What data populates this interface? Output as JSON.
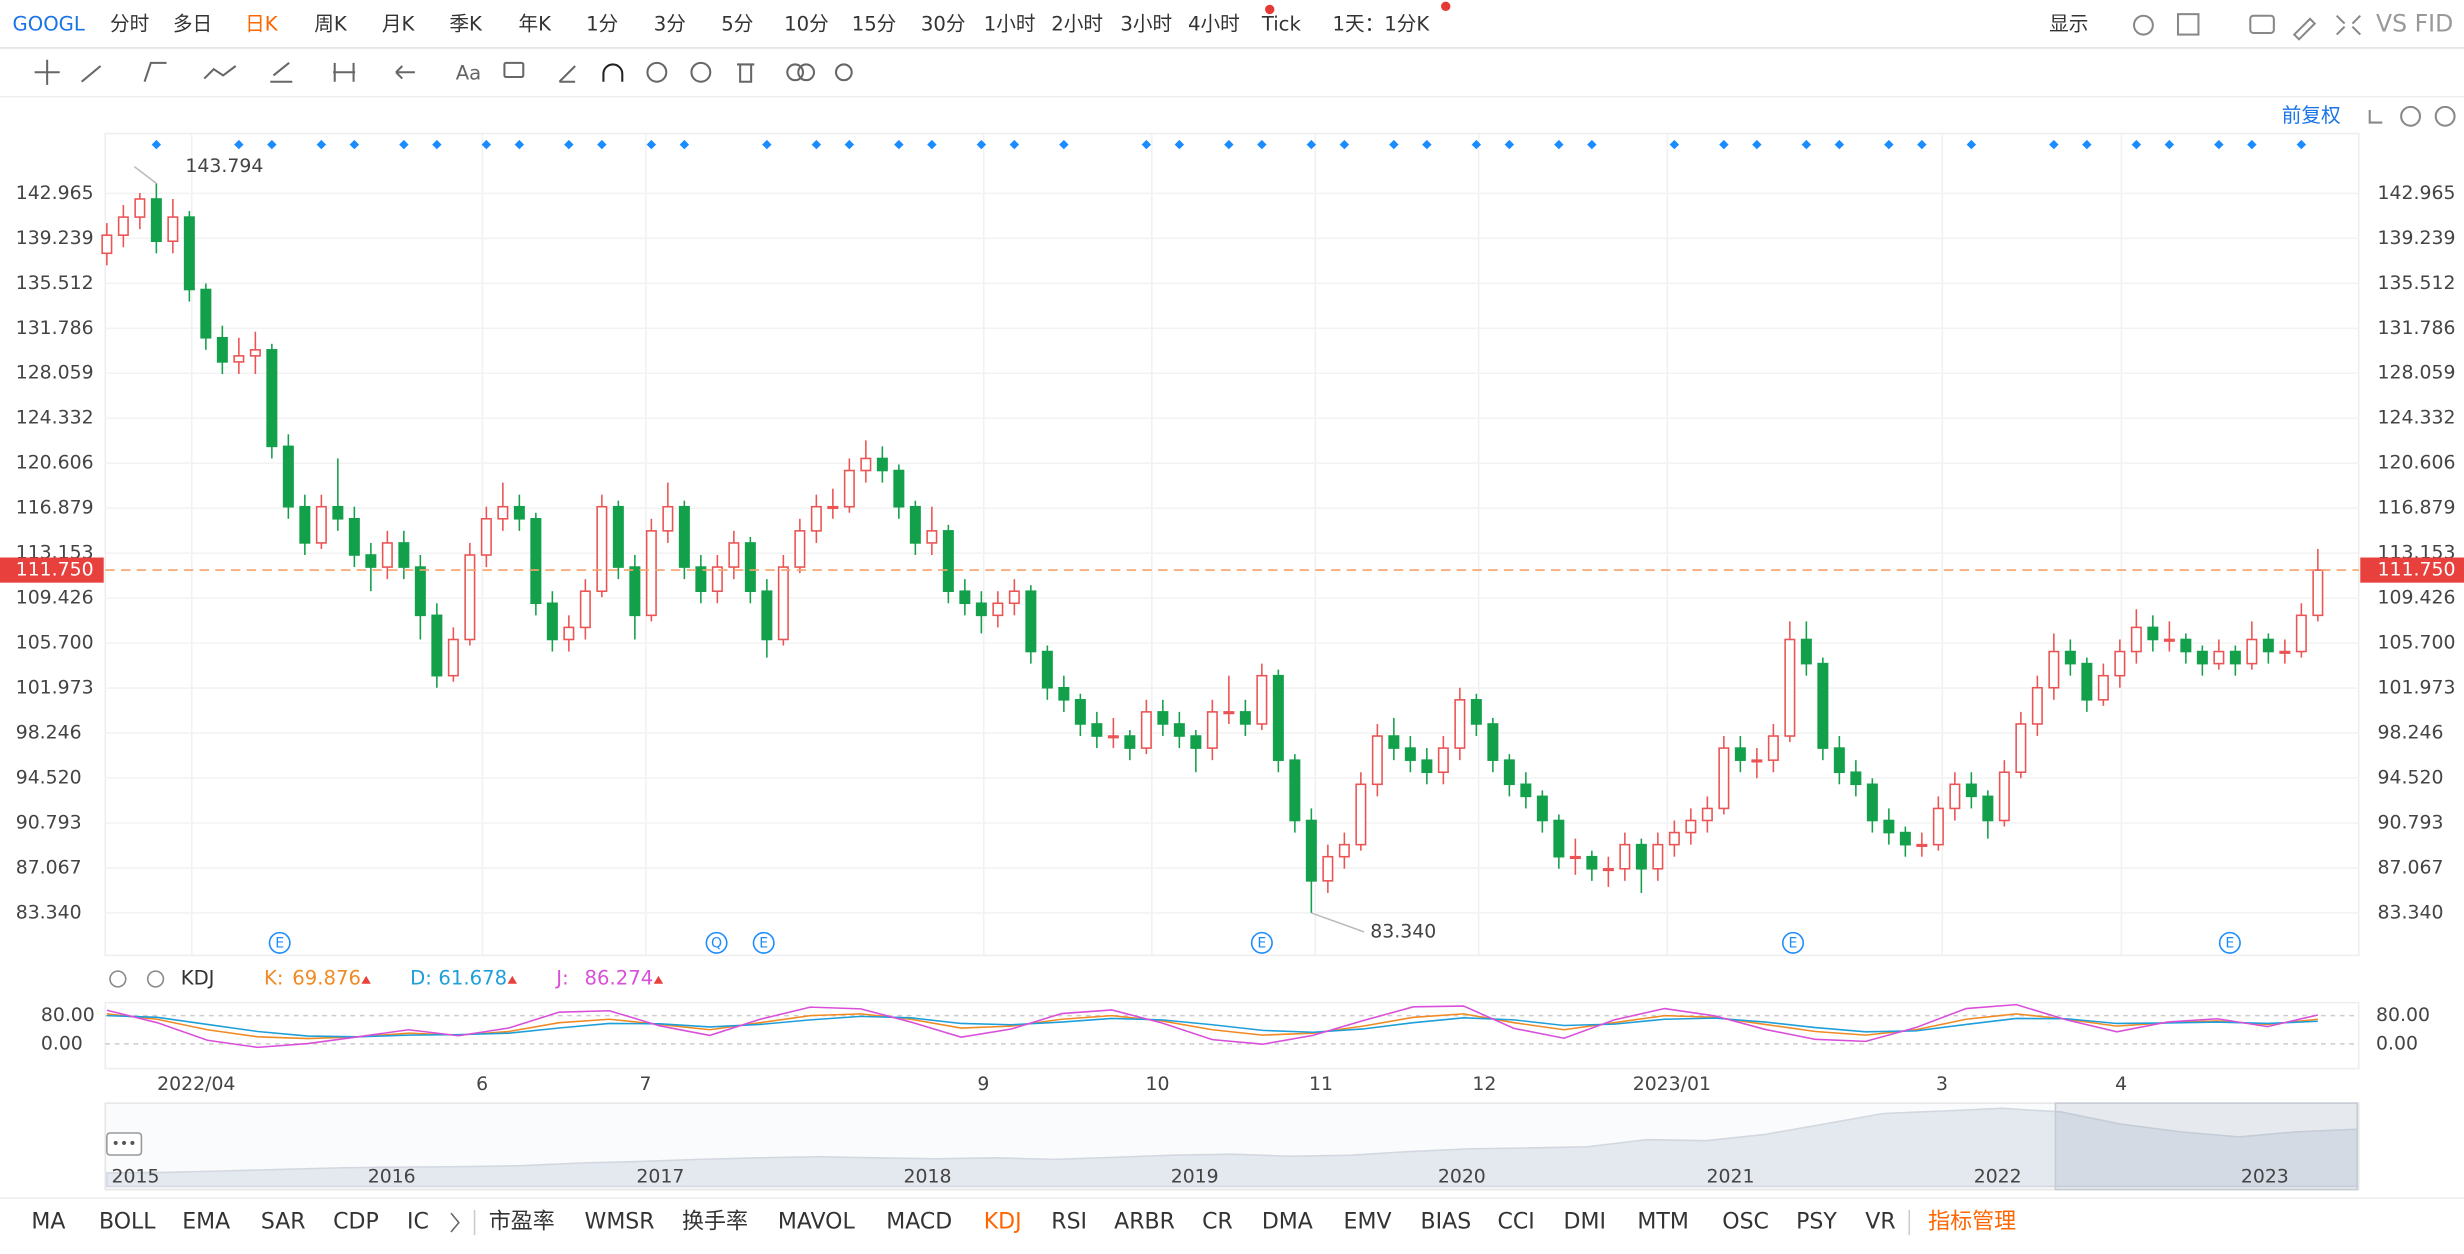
{
  "top_bar": {
    "symbol": "GOOGL",
    "periods": [
      "分时",
      "多日",
      "日K",
      "周K",
      "月K",
      "季K",
      "年K",
      "1分",
      "3分",
      "5分",
      "10分",
      "15分",
      "30分",
      "1小时",
      "2小时",
      "3小时",
      "4小时",
      "Tick"
    ],
    "range": "1天：1分K",
    "display": "显示",
    "compare": "VS FID"
  },
  "toolbar": {
    "text_tool": "Aa"
  },
  "adjust": "前复权",
  "chart": {
    "type": "candlestick",
    "ylim": [
      79.82,
      147.92
    ],
    "yticks": [
      {
        "value": 83.34,
        "label": "83.340"
      },
      87.067,
      90.793,
      {
        "value": 94.52,
        "label": "94.520"
      },
      98.246,
      101.973,
      {
        "value": 105.7,
        "label": "105.700"
      },
      109.426,
      113.153,
      116.879,
      120.606,
      124.332,
      128.059,
      131.786,
      135.512,
      139.239,
      142.965
    ],
    "last_price": {
      "value": 111.75,
      "label": "111.750"
    },
    "high": 143.794,
    "low": {
      "value": 83.34,
      "label": "83.340"
    },
    "up_color": "#eb5454",
    "down_color": "#13a04a",
    "events": [
      "E",
      "Q",
      "E",
      "E",
      "E",
      "E"
    ],
    "ohlc": [
      [
        138,
        140.5,
        137,
        139.5
      ],
      [
        139.5,
        142,
        138.5,
        141
      ],
      [
        141,
        143,
        140,
        142.5
      ],
      [
        142.5,
        143.794,
        138,
        139
      ],
      [
        139,
        142.5,
        138,
        141
      ],
      [
        141,
        141.5,
        134,
        135
      ],
      [
        135,
        135.5,
        130,
        131
      ],
      [
        131,
        132,
        128,
        129
      ],
      [
        129,
        131,
        128,
        129.5
      ],
      [
        129.5,
        131.5,
        128,
        130
      ],
      [
        130,
        130.5,
        121,
        122
      ],
      [
        122,
        123,
        116,
        117
      ],
      [
        117,
        118,
        113,
        114
      ],
      [
        114,
        118,
        113.5,
        117
      ],
      [
        117,
        121,
        115,
        116
      ],
      [
        116,
        117,
        112,
        113
      ],
      [
        113,
        114,
        110,
        112
      ],
      [
        112,
        115,
        111,
        114
      ],
      [
        114,
        115,
        111,
        112
      ],
      [
        112,
        113,
        106,
        108
      ],
      [
        108,
        109,
        102,
        103
      ],
      [
        103,
        107,
        102.5,
        106
      ],
      [
        106,
        114,
        105.5,
        113
      ],
      [
        113,
        117,
        112,
        116
      ],
      [
        116,
        119,
        115,
        117
      ],
      [
        117,
        118,
        115,
        116
      ],
      [
        116,
        116.5,
        108,
        109
      ],
      [
        109,
        110,
        105,
        106
      ],
      [
        106,
        108,
        105,
        107
      ],
      [
        107,
        111,
        106,
        110
      ],
      [
        110,
        118,
        109.5,
        117
      ],
      [
        117,
        117.5,
        111,
        112
      ],
      [
        112,
        113,
        106,
        108
      ],
      [
        108,
        116,
        107.5,
        115
      ],
      [
        115,
        119,
        114,
        117
      ],
      [
        117,
        117.5,
        111,
        112
      ],
      [
        112,
        113,
        109,
        110
      ],
      [
        110,
        113,
        109,
        112
      ],
      [
        112,
        115,
        111,
        114
      ],
      [
        114,
        114.5,
        109,
        110
      ],
      [
        110,
        111,
        104.5,
        106
      ],
      [
        106,
        113,
        105.5,
        112
      ],
      [
        112,
        116,
        111.5,
        115
      ],
      [
        115,
        118,
        114,
        117
      ],
      [
        117,
        118.5,
        116,
        117
      ],
      [
        117,
        121,
        116.5,
        120
      ],
      [
        120,
        122.5,
        119,
        121
      ],
      [
        121,
        122,
        119,
        120
      ],
      [
        120,
        120.5,
        116,
        117
      ],
      [
        117,
        117.5,
        113,
        114
      ],
      [
        114,
        117,
        113,
        115
      ],
      [
        115,
        115.5,
        109,
        110
      ],
      [
        110,
        111,
        108,
        109
      ],
      [
        109,
        110,
        106.5,
        108
      ],
      [
        108,
        110,
        107,
        109
      ],
      [
        109,
        111,
        108,
        110
      ],
      [
        110,
        110.5,
        104,
        105
      ],
      [
        105,
        105.5,
        101,
        102
      ],
      [
        102,
        103,
        100,
        101
      ],
      [
        101,
        101.5,
        98,
        99
      ],
      [
        99,
        100,
        97,
        98
      ],
      [
        98,
        99.5,
        97,
        98
      ],
      [
        98,
        98.5,
        96,
        97
      ],
      [
        97,
        101,
        96.5,
        100
      ],
      [
        100,
        101,
        98,
        99
      ],
      [
        99,
        100,
        97,
        98
      ],
      [
        98,
        98.5,
        95,
        97
      ],
      [
        97,
        101,
        96,
        100
      ],
      [
        100,
        103,
        99,
        100
      ],
      [
        100,
        101,
        98,
        99
      ],
      [
        99,
        104,
        98.5,
        103
      ],
      [
        103,
        103.5,
        95,
        96
      ],
      [
        96,
        96.5,
        90,
        91
      ],
      [
        91,
        92,
        83.34,
        86
      ],
      [
        86,
        89,
        85,
        88
      ],
      [
        88,
        90,
        87,
        89
      ],
      [
        89,
        95,
        88.5,
        94
      ],
      [
        94,
        99,
        93,
        98
      ],
      [
        98,
        99.5,
        96,
        97
      ],
      [
        97,
        98,
        95,
        96
      ],
      [
        96,
        97,
        94,
        95
      ],
      [
        95,
        98,
        94,
        97
      ],
      [
        97,
        102,
        96,
        101
      ],
      [
        101,
        101.5,
        98,
        99
      ],
      [
        99,
        99.5,
        95,
        96
      ],
      [
        96,
        96.5,
        93,
        94
      ],
      [
        94,
        95,
        92,
        93
      ],
      [
        93,
        93.5,
        90,
        91
      ],
      [
        91,
        91.5,
        87,
        88
      ],
      [
        88,
        89.5,
        86.5,
        88
      ],
      [
        88,
        88.5,
        86,
        87
      ],
      [
        87,
        88,
        85.5,
        87
      ],
      [
        87,
        90,
        86,
        89
      ],
      [
        89,
        89.5,
        85,
        87
      ],
      [
        87,
        90,
        86,
        89
      ],
      [
        89,
        91,
        88,
        90
      ],
      [
        90,
        92,
        89,
        91
      ],
      [
        91,
        93,
        90,
        92
      ],
      [
        92,
        98,
        91.5,
        97
      ],
      [
        97,
        98,
        95,
        96
      ],
      [
        96,
        97,
        94.5,
        96
      ],
      [
        96,
        99,
        95,
        98
      ],
      [
        98,
        107.5,
        97.5,
        106
      ],
      [
        106,
        107.5,
        103,
        104
      ],
      [
        104,
        104.5,
        96,
        97
      ],
      [
        97,
        98,
        94,
        95
      ],
      [
        95,
        96,
        93,
        94
      ],
      [
        94,
        94.5,
        90,
        91
      ],
      [
        91,
        92,
        89,
        90
      ],
      [
        90,
        90.5,
        88,
        89
      ],
      [
        89,
        90,
        88,
        89
      ],
      [
        89,
        93,
        88.5,
        92
      ],
      [
        92,
        95,
        91,
        94
      ],
      [
        94,
        95,
        92,
        93
      ],
      [
        93,
        93.5,
        89.5,
        91
      ],
      [
        91,
        96,
        90.5,
        95
      ],
      [
        95,
        100,
        94.5,
        99
      ],
      [
        99,
        103,
        98,
        102
      ],
      [
        102,
        106.5,
        101,
        105
      ],
      [
        105,
        106,
        103,
        104
      ],
      [
        104,
        104.5,
        100,
        101
      ],
      [
        101,
        104,
        100.5,
        103
      ],
      [
        103,
        106,
        102,
        105
      ],
      [
        105,
        108.5,
        104,
        107
      ],
      [
        107,
        108,
        105,
        106
      ],
      [
        106,
        107.5,
        105,
        106
      ],
      [
        106,
        106.5,
        104,
        105
      ],
      [
        105,
        105.5,
        103,
        104
      ],
      [
        104,
        106,
        103.5,
        105
      ],
      [
        105,
        105.5,
        103,
        104
      ],
      [
        104,
        107.5,
        103.5,
        106
      ],
      [
        106,
        106.5,
        104,
        105
      ],
      [
        105,
        106,
        104,
        105
      ],
      [
        105,
        109,
        104.5,
        108
      ],
      [
        108,
        113.5,
        107.5,
        111.75
      ]
    ]
  },
  "indicator": {
    "name": "KDJ",
    "k": {
      "label": "K:",
      "value": 69.876,
      "color": "#f08a24"
    },
    "d": {
      "label": "D:",
      "value": 61.678,
      "color": "#1e9fd9"
    },
    "j": {
      "label": "J:",
      "value": 86.274,
      "color": "#d94fd9"
    },
    "ylim": [
      -70,
      117
    ],
    "yticks": [
      {
        "value": 80,
        "label": "80.00"
      },
      {
        "value": 0,
        "label": "0.00"
      }
    ],
    "k_values": [
      85,
      70,
      40,
      20,
      15,
      20,
      30,
      25,
      35,
      60,
      70,
      55,
      40,
      60,
      80,
      85,
      70,
      45,
      50,
      70,
      80,
      65,
      40,
      25,
      30,
      50,
      75,
      85,
      60,
      40,
      60,
      80,
      75,
      55,
      35,
      25,
      40,
      70,
      85,
      70,
      50,
      60,
      65,
      55,
      70
    ],
    "d_values": [
      80,
      75,
      55,
      35,
      22,
      20,
      25,
      26,
      30,
      45,
      58,
      57,
      48,
      55,
      68,
      78,
      74,
      58,
      54,
      62,
      72,
      68,
      54,
      38,
      33,
      42,
      60,
      74,
      68,
      52,
      56,
      70,
      73,
      62,
      46,
      34,
      37,
      55,
      72,
      71,
      58,
      59,
      62,
      58,
      64
    ],
    "j_values": [
      95,
      60,
      10,
      -10,
      1,
      20,
      40,
      23,
      45,
      90,
      94,
      51,
      24,
      70,
      104,
      99,
      62,
      19,
      42,
      86,
      96,
      59,
      12,
      -1,
      24,
      66,
      105,
      107,
      44,
      16,
      68,
      100,
      79,
      41,
      13,
      7,
      46,
      100,
      111,
      68,
      34,
      62,
      71,
      49,
      82
    ]
  },
  "months": [
    "2022/04",
    "6",
    "7",
    "9",
    "10",
    "11",
    "12",
    "2023/01",
    "3",
    "4"
  ],
  "navigator": {
    "years": [
      "2015",
      "2016",
      "2017",
      "2018",
      "2019",
      "2020",
      "2021",
      "2022",
      "2023"
    ],
    "ylim": [
      0,
      160
    ],
    "values": [
      26,
      27,
      30,
      33,
      36,
      37,
      38,
      40,
      45,
      48,
      52,
      55,
      57,
      55,
      53,
      55,
      52,
      56,
      60,
      62,
      58,
      60,
      67,
      72,
      74,
      76,
      90,
      88,
      100,
      120,
      140,
      145,
      150,
      143,
      120,
      105,
      95,
      105,
      110
    ]
  },
  "bottom_bar": {
    "indicators": [
      "MA",
      "BOLL",
      "EMA",
      "SAR",
      "CDP",
      "IC",
      "市盈率",
      "WMSR",
      "换手率",
      "MAVOL",
      "MACD",
      "KDJ",
      "RSI",
      "ARBR",
      "CR",
      "DMA",
      "EMV",
      "BIAS",
      "CCI",
      "DMI",
      "MTM",
      "OSC",
      "PSY",
      "VR"
    ],
    "manage": "指标管理"
  }
}
